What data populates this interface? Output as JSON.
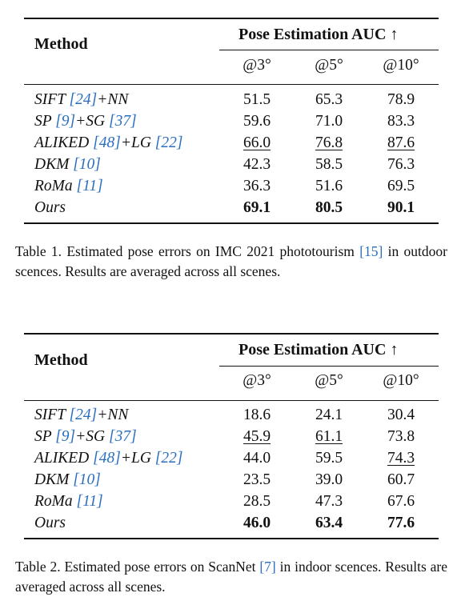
{
  "tables": [
    {
      "caption_prefix": "Table 1.",
      "caption_text_a": "Estimated pose errors on IMC 2021 phototourism",
      "caption_ref": "[15]",
      "caption_text_b": "in outdoor scences. Results are averaged across all scenes.",
      "header": {
        "method": "Method",
        "group": "Pose Estimation AUC ↑",
        "cols": [
          "@3°",
          "@5°",
          "@10°"
        ]
      },
      "rows": [
        {
          "name": "SIFT",
          "ref1": "[24]",
          "mid": "+NN",
          "ref2": "",
          "values": [
            "51.5",
            "65.3",
            "78.9"
          ],
          "style": [
            "",
            "",
            ""
          ]
        },
        {
          "name": "SP",
          "ref1": "[9]",
          "mid": "+SG",
          "ref2": "[37]",
          "values": [
            "59.6",
            "71.0",
            "83.3"
          ],
          "style": [
            "",
            "",
            ""
          ]
        },
        {
          "name": "ALIKED",
          "ref1": "[48]",
          "mid": "+LG",
          "ref2": "[22]",
          "values": [
            "66.0",
            "76.8",
            "87.6"
          ],
          "style": [
            "ul",
            "ul",
            "ul"
          ]
        },
        {
          "name": "DKM",
          "ref1": "[10]",
          "mid": "",
          "ref2": "",
          "values": [
            "42.3",
            "58.5",
            "76.3"
          ],
          "style": [
            "",
            "",
            ""
          ]
        },
        {
          "name": "RoMa",
          "ref1": "[11]",
          "mid": "",
          "ref2": "",
          "values": [
            "36.3",
            "51.6",
            "69.5"
          ],
          "style": [
            "",
            "",
            ""
          ]
        },
        {
          "name": "Ours",
          "ref1": "",
          "mid": "",
          "ref2": "",
          "values": [
            "69.1",
            "80.5",
            "90.1"
          ],
          "style": [
            "bold",
            "bold",
            "bold"
          ]
        }
      ]
    },
    {
      "caption_prefix": "Table 2.",
      "caption_text_a": "Estimated pose errors on ScanNet",
      "caption_ref": "[7]",
      "caption_text_b": "in indoor scences. Results are averaged across all scenes.",
      "header": {
        "method": "Method",
        "group": "Pose Estimation AUC ↑",
        "cols": [
          "@3°",
          "@5°",
          "@10°"
        ]
      },
      "rows": [
        {
          "name": "SIFT",
          "ref1": "[24]",
          "mid": "+NN",
          "ref2": "",
          "values": [
            "18.6",
            "24.1",
            "30.4"
          ],
          "style": [
            "",
            "",
            ""
          ]
        },
        {
          "name": "SP",
          "ref1": "[9]",
          "mid": "+SG",
          "ref2": "[37]",
          "values": [
            "45.9",
            "61.1",
            "73.8"
          ],
          "style": [
            "ul",
            "ul",
            ""
          ]
        },
        {
          "name": "ALIKED",
          "ref1": "[48]",
          "mid": "+LG",
          "ref2": "[22]",
          "values": [
            "44.0",
            "59.5",
            "74.3"
          ],
          "style": [
            "",
            "",
            "ul"
          ]
        },
        {
          "name": "DKM",
          "ref1": "[10]",
          "mid": "",
          "ref2": "",
          "values": [
            "23.5",
            "39.0",
            "60.7"
          ],
          "style": [
            "",
            "",
            ""
          ]
        },
        {
          "name": "RoMa",
          "ref1": "[11]",
          "mid": "",
          "ref2": "",
          "values": [
            "28.5",
            "47.3",
            "67.6"
          ],
          "style": [
            "",
            "",
            ""
          ]
        },
        {
          "name": "Ours",
          "ref1": "",
          "mid": "",
          "ref2": "",
          "values": [
            "46.0",
            "63.4",
            "77.6"
          ],
          "style": [
            "bold",
            "bold",
            "bold"
          ]
        }
      ]
    }
  ]
}
